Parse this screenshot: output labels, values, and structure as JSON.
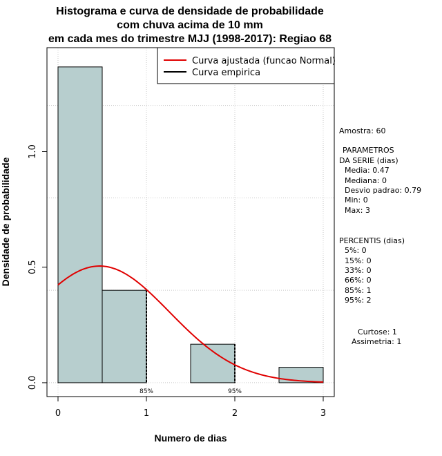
{
  "chart_data": {
    "type": "bar",
    "title_lines": [
      "Histograma e curva de densidade de probabilidade",
      "com chuva acima de 10 mm",
      "em cada mes do trimestre MJJ (1998-2017): Regiao 68"
    ],
    "xlabel": "Numero de dias",
    "ylabel": "Densidade de probabilidade",
    "xlim": [
      -0.125,
      3.125
    ],
    "ylim": [
      -0.06,
      1.45
    ],
    "x_ticks": [
      0,
      1,
      2,
      3
    ],
    "x_tick_labels": [
      "0",
      "1",
      "2",
      "3"
    ],
    "y_ticks": [
      0.0,
      0.5,
      1.0
    ],
    "y_tick_labels": [
      "0.0",
      "0.5",
      "1.0"
    ],
    "bins": [
      {
        "x0": 0.0,
        "x1": 0.5,
        "density": 1.3667
      },
      {
        "x0": 0.5,
        "x1": 1.0,
        "density": 0.4
      },
      {
        "x0": 1.0,
        "x1": 1.5,
        "density": 0.0
      },
      {
        "x0": 1.5,
        "x1": 2.0,
        "density": 0.1667
      },
      {
        "x0": 2.0,
        "x1": 2.5,
        "density": 0.0
      },
      {
        "x0": 2.5,
        "x1": 3.0,
        "density": 0.0667
      }
    ],
    "bar_color": "#b7cece",
    "fitted_curve": {
      "mean": 0.47,
      "sd": 0.79,
      "x_from": 0,
      "x_to": 3,
      "color": "#e00000"
    },
    "empirical_color": "#000000",
    "legend": [
      {
        "label": "Curva ajustada (funcao Normal)",
        "color": "#e00000"
      },
      {
        "label": "Curva empirica",
        "color": "#000000"
      }
    ],
    "legend_position": "top-right",
    "percentile_markers": [
      {
        "x": 1,
        "label": "85%"
      },
      {
        "x": 2,
        "label": "95%"
      }
    ],
    "grid": true
  },
  "side_panel": {
    "sample": "Amostra: 60",
    "params_title_1": "PARAMETROS",
    "params_title_2": "DA SERIE (dias)",
    "media": "Media: 0.47",
    "mediana": "Mediana: 0",
    "desvio": "Desvio padrao: 0.79",
    "min": "Min: 0",
    "max": "Max: 3",
    "percentis_title": "PERCENTIS (dias)",
    "p5": "5%: 0",
    "p15": "15%: 0",
    "p33": "33%: 0",
    "p66": "66%: 0",
    "p85": "85%: 1",
    "p95": "95%: 2",
    "curtose": "Curtose: 1",
    "assimetria": "Assimetria: 1"
  }
}
